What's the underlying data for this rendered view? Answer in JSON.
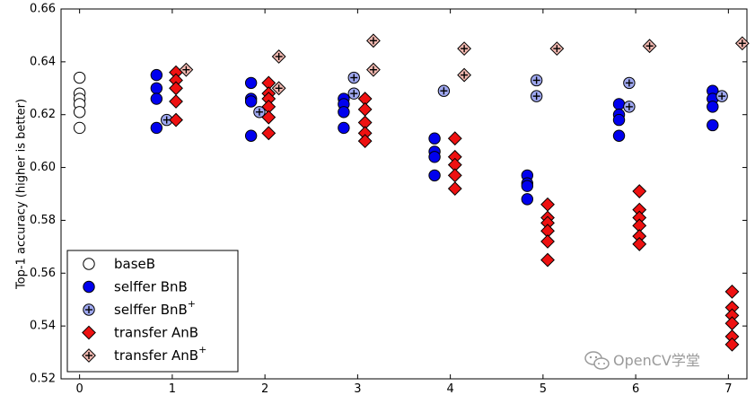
{
  "chart_data": {
    "type": "scatter",
    "ylabel": "Top-1 accuracy (higher is better)",
    "xlim": [
      -0.2,
      7.2
    ],
    "ylim": [
      0.52,
      0.66
    ],
    "x_ticks": [
      "0",
      "1",
      "2",
      "3",
      "4",
      "5",
      "6",
      "7"
    ],
    "y_ticks": [
      "0.52",
      "0.54",
      "0.56",
      "0.58",
      "0.60",
      "0.62",
      "0.64",
      "0.66"
    ],
    "legend_position": "bottom-left",
    "grid": false,
    "series": [
      {
        "name": "baseB",
        "marker": "circle-open",
        "color": "#ffffff",
        "points": [
          [
            0,
            0.634
          ],
          [
            0,
            0.628
          ],
          [
            0,
            0.626
          ],
          [
            0,
            0.624
          ],
          [
            0,
            0.621
          ],
          [
            0,
            0.615
          ]
        ]
      },
      {
        "name": "selffer BnB",
        "marker": "circle-filled",
        "color": "#0000ee",
        "points": [
          [
            0.83,
            0.635
          ],
          [
            0.83,
            0.63
          ],
          [
            0.83,
            0.626
          ],
          [
            0.83,
            0.615
          ],
          [
            1.85,
            0.632
          ],
          [
            1.85,
            0.626
          ],
          [
            1.85,
            0.625
          ],
          [
            1.85,
            0.612
          ],
          [
            2.85,
            0.626
          ],
          [
            2.85,
            0.624
          ],
          [
            2.85,
            0.621
          ],
          [
            2.85,
            0.615
          ],
          [
            3.83,
            0.611
          ],
          [
            3.83,
            0.606
          ],
          [
            3.83,
            0.604
          ],
          [
            3.83,
            0.597
          ],
          [
            4.83,
            0.597
          ],
          [
            4.83,
            0.594
          ],
          [
            4.83,
            0.593
          ],
          [
            4.83,
            0.588
          ],
          [
            5.82,
            0.624
          ],
          [
            5.82,
            0.62
          ],
          [
            5.82,
            0.618
          ],
          [
            5.82,
            0.612
          ],
          [
            6.83,
            0.629
          ],
          [
            6.83,
            0.626
          ],
          [
            6.83,
            0.623
          ],
          [
            6.83,
            0.616
          ]
        ]
      },
      {
        "name": "selffer BnB+",
        "marker": "circle-plus",
        "color": "#9fa8f0",
        "points": [
          [
            0.94,
            0.618
          ],
          [
            1.94,
            0.621
          ],
          [
            2.96,
            0.634
          ],
          [
            2.96,
            0.628
          ],
          [
            3.93,
            0.629
          ],
          [
            4.93,
            0.633
          ],
          [
            4.93,
            0.627
          ],
          [
            5.93,
            0.632
          ],
          [
            5.93,
            0.623
          ],
          [
            6.93,
            0.627
          ]
        ]
      },
      {
        "name": "transfer AnB",
        "marker": "diamond-filled",
        "color": "#ee1111",
        "points": [
          [
            1.04,
            0.636
          ],
          [
            1.04,
            0.633
          ],
          [
            1.04,
            0.63
          ],
          [
            1.04,
            0.625
          ],
          [
            1.04,
            0.618
          ],
          [
            2.04,
            0.632
          ],
          [
            2.04,
            0.628
          ],
          [
            2.04,
            0.626
          ],
          [
            2.04,
            0.623
          ],
          [
            2.04,
            0.619
          ],
          [
            2.04,
            0.613
          ],
          [
            3.08,
            0.626
          ],
          [
            3.08,
            0.622
          ],
          [
            3.08,
            0.617
          ],
          [
            3.08,
            0.613
          ],
          [
            3.08,
            0.61
          ],
          [
            4.05,
            0.611
          ],
          [
            4.05,
            0.604
          ],
          [
            4.05,
            0.601
          ],
          [
            4.05,
            0.597
          ],
          [
            4.05,
            0.592
          ],
          [
            5.05,
            0.586
          ],
          [
            5.05,
            0.581
          ],
          [
            5.05,
            0.579
          ],
          [
            5.05,
            0.576
          ],
          [
            5.05,
            0.572
          ],
          [
            5.05,
            0.565
          ],
          [
            6.04,
            0.591
          ],
          [
            6.04,
            0.584
          ],
          [
            6.04,
            0.581
          ],
          [
            6.04,
            0.578
          ],
          [
            6.04,
            0.574
          ],
          [
            6.04,
            0.571
          ],
          [
            7.04,
            0.553
          ],
          [
            7.04,
            0.547
          ],
          [
            7.04,
            0.544
          ],
          [
            7.04,
            0.541
          ],
          [
            7.04,
            0.536
          ],
          [
            7.04,
            0.533
          ]
        ]
      },
      {
        "name": "transfer AnB+",
        "marker": "diamond-plus",
        "color": "#f2b8b0",
        "points": [
          [
            1.15,
            0.637
          ],
          [
            2.15,
            0.642
          ],
          [
            2.15,
            0.63
          ],
          [
            3.17,
            0.648
          ],
          [
            3.17,
            0.637
          ],
          [
            4.15,
            0.645
          ],
          [
            4.15,
            0.635
          ],
          [
            5.15,
            0.645
          ],
          [
            6.15,
            0.646
          ],
          [
            7.15,
            0.647
          ]
        ]
      }
    ]
  },
  "legend": {
    "items": [
      {
        "label": "baseB",
        "sup": ""
      },
      {
        "label": "selffer BnB",
        "sup": ""
      },
      {
        "label": "selffer BnB",
        "sup": "+"
      },
      {
        "label": "transfer AnB",
        "sup": ""
      },
      {
        "label": "transfer AnB",
        "sup": "+"
      }
    ]
  },
  "watermark": {
    "text": "OpenCV学堂",
    "icon": "wechat-icon"
  }
}
